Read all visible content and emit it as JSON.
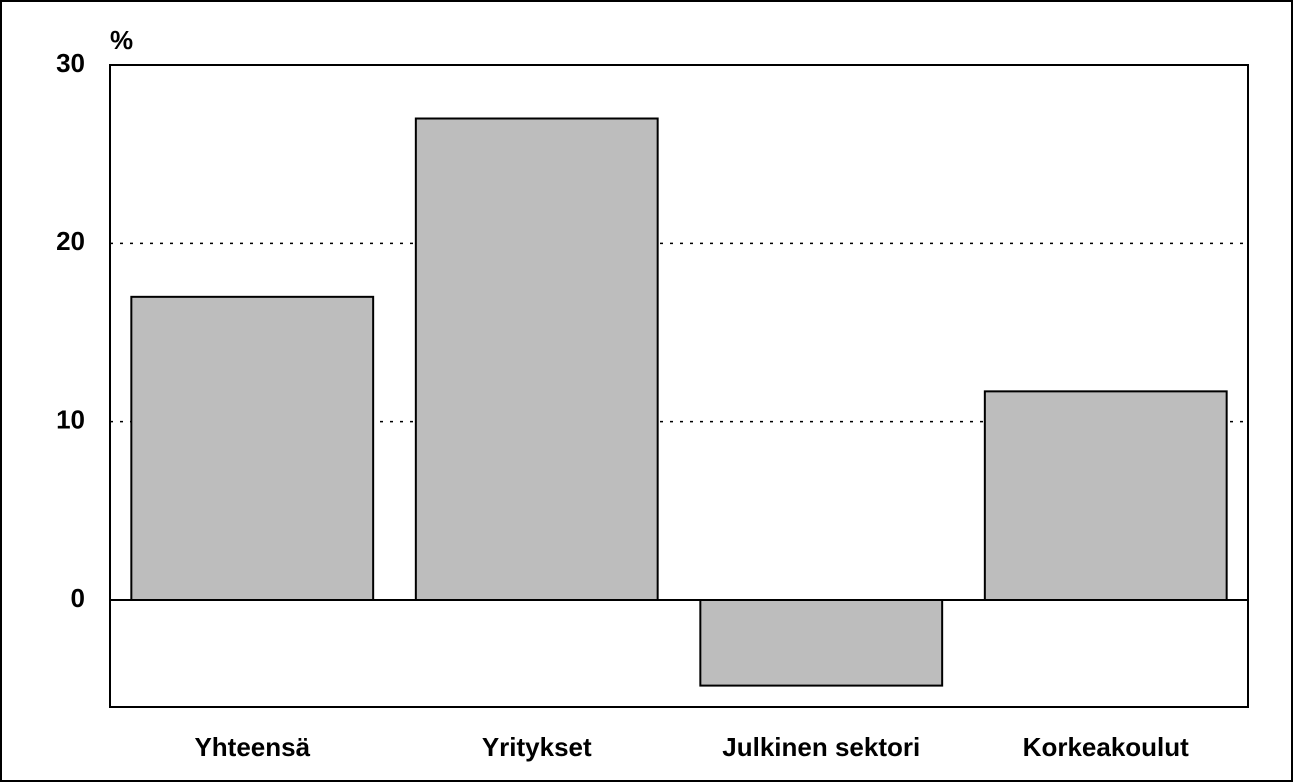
{
  "chart_data": {
    "type": "bar",
    "y_axis_label": "%",
    "categories": [
      "Yhteensä",
      "Yritykset",
      "Julkinen sektori",
      "Korkeakoulut"
    ],
    "values": [
      17,
      27,
      -4.8,
      11.7
    ],
    "color": "#bdbdbd",
    "ylim": [
      -6,
      30
    ],
    "yticks": [
      0,
      10,
      20,
      30
    ],
    "grid": true
  }
}
